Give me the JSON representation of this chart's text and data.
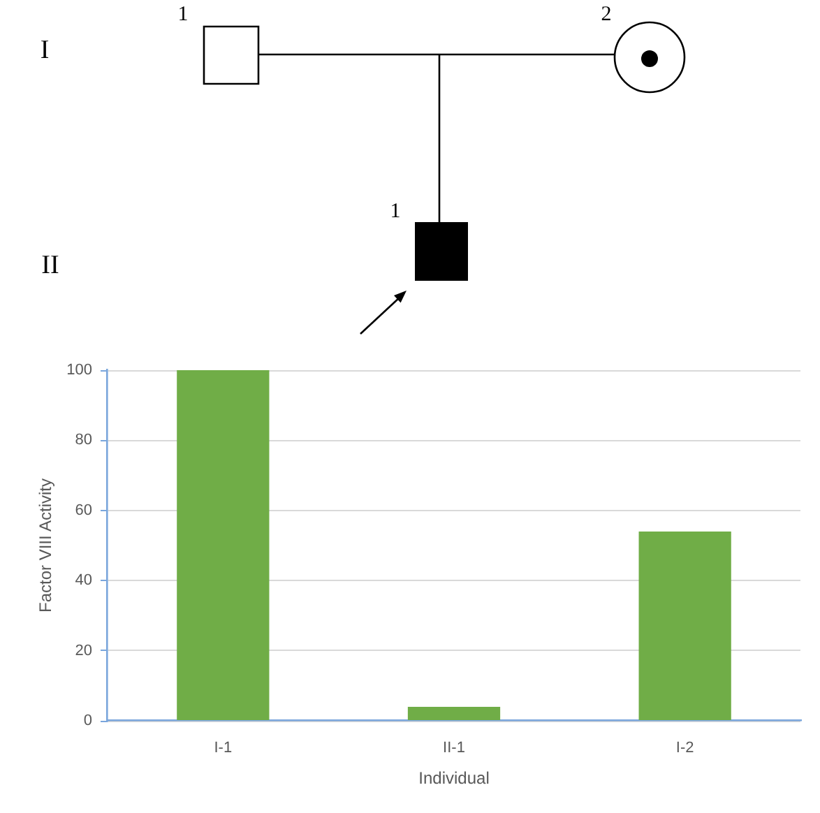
{
  "chart_data": {
    "type": "bar",
    "xlabel": "Individual",
    "ylabel": "Factor VIII Activity",
    "categories": [
      "I-1",
      "II-1",
      "I-2"
    ],
    "values": [
      100,
      4,
      54
    ],
    "color": "#70ad47",
    "ylim": [
      0,
      100
    ],
    "yticks": [
      0,
      20,
      40,
      60,
      80,
      100
    ],
    "grid": "y",
    "annotations": [
      "I",
      "II",
      "1",
      "2",
      "1"
    ]
  }
}
